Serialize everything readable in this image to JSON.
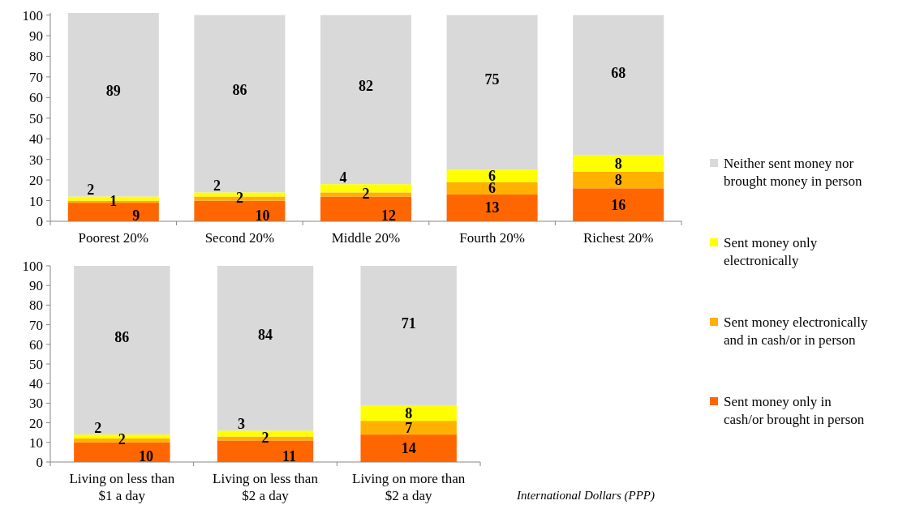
{
  "chart_data": [
    {
      "type": "bar",
      "stacked": true,
      "categories": [
        "Poorest 20%",
        "Second 20%",
        "Middle 20%",
        "Fourth 20%",
        "Richest 20%"
      ],
      "ylim": [
        0,
        101
      ],
      "yticks": [
        0,
        10,
        20,
        30,
        40,
        50,
        60,
        70,
        80,
        90,
        100
      ],
      "data_labels": true,
      "legend": "right",
      "series": [
        {
          "name": "Sent money only in cash/or brought in person",
          "color": "#ff6600",
          "values": [
            9,
            10,
            12,
            13,
            16
          ]
        },
        {
          "name": "Sent money electronically and in cash/or in person",
          "color": "#ffb000",
          "values": [
            1,
            2,
            2,
            6,
            8
          ]
        },
        {
          "name": "Sent money only electronically",
          "color": "#ffff00",
          "values": [
            2,
            2,
            4,
            6,
            8
          ]
        },
        {
          "name": "Neither  sent money nor brought money in person",
          "color": "#d9d9d9",
          "values": [
            89,
            86,
            82,
            75,
            68
          ]
        }
      ]
    },
    {
      "type": "bar",
      "stacked": true,
      "categories": [
        "Living on less than $1 a day",
        "Living on less than $2 a day",
        "Living on more than $2 a day"
      ],
      "ylim": [
        0,
        100
      ],
      "yticks": [
        0,
        10,
        20,
        30,
        40,
        50,
        60,
        70,
        80,
        90,
        100
      ],
      "data_labels": true,
      "annotations": [
        "International Dollars (PPP)"
      ],
      "series": [
        {
          "color": "#ff6600",
          "values": [
            10,
            11,
            14
          ]
        },
        {
          "color": "#ffb000",
          "values": [
            2,
            2,
            7
          ]
        },
        {
          "color": "#ffff00",
          "values": [
            2,
            3,
            8
          ]
        },
        {
          "color": "#d9d9d9",
          "values": [
            86,
            84,
            71
          ]
        }
      ]
    }
  ]
}
